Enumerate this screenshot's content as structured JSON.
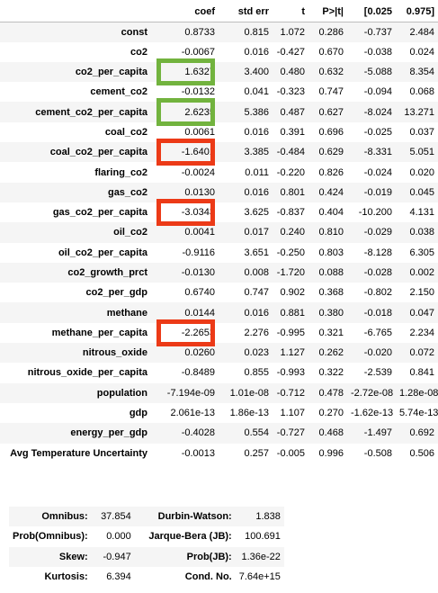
{
  "headers": [
    "",
    "coef",
    "std err",
    "t",
    "P>|t|",
    "[0.025",
    "0.975]"
  ],
  "rows": [
    {
      "name": "const",
      "values": [
        "0.8733",
        "0.815",
        "1.072",
        "0.286",
        "-0.737",
        "2.484"
      ]
    },
    {
      "name": "co2",
      "values": [
        "-0.0067",
        "0.016",
        "-0.427",
        "0.670",
        "-0.038",
        "0.024"
      ]
    },
    {
      "name": "co2_per_capita",
      "values": [
        "1.6327",
        "3.400",
        "0.480",
        "0.632",
        "-5.088",
        "8.354"
      ],
      "highlight": "green"
    },
    {
      "name": "cement_co2",
      "values": [
        "-0.0132",
        "0.041",
        "-0.323",
        "0.747",
        "-0.094",
        "0.068"
      ]
    },
    {
      "name": "cement_co2_per_capita",
      "values": [
        "2.6235",
        "5.386",
        "0.487",
        "0.627",
        "-8.024",
        "13.271"
      ],
      "highlight": "green"
    },
    {
      "name": "coal_co2",
      "values": [
        "0.0061",
        "0.016",
        "0.391",
        "0.696",
        "-0.025",
        "0.037"
      ]
    },
    {
      "name": "coal_co2_per_capita",
      "values": [
        "-1.6401",
        "3.385",
        "-0.484",
        "0.629",
        "-8.331",
        "5.051"
      ],
      "highlight": "red"
    },
    {
      "name": "flaring_co2",
      "values": [
        "-0.0024",
        "0.011",
        "-0.220",
        "0.826",
        "-0.024",
        "0.020"
      ]
    },
    {
      "name": "gas_co2",
      "values": [
        "0.0130",
        "0.016",
        "0.801",
        "0.424",
        "-0.019",
        "0.045"
      ]
    },
    {
      "name": "gas_co2_per_capita",
      "values": [
        "-3.0343",
        "3.625",
        "-0.837",
        "0.404",
        "-10.200",
        "4.131"
      ],
      "highlight": "red"
    },
    {
      "name": "oil_co2",
      "values": [
        "0.0041",
        "0.017",
        "0.240",
        "0.810",
        "-0.029",
        "0.038"
      ]
    },
    {
      "name": "oil_co2_per_capita",
      "values": [
        "-0.9116",
        "3.651",
        "-0.250",
        "0.803",
        "-8.128",
        "6.305"
      ]
    },
    {
      "name": "co2_growth_prct",
      "values": [
        "-0.0130",
        "0.008",
        "-1.720",
        "0.088",
        "-0.028",
        "0.002"
      ]
    },
    {
      "name": "co2_per_gdp",
      "values": [
        "0.6740",
        "0.747",
        "0.902",
        "0.368",
        "-0.802",
        "2.150"
      ]
    },
    {
      "name": "methane",
      "values": [
        "0.0144",
        "0.016",
        "0.881",
        "0.380",
        "-0.018",
        "0.047"
      ]
    },
    {
      "name": "methane_per_capita",
      "values": [
        "-2.2653",
        "2.276",
        "-0.995",
        "0.321",
        "-6.765",
        "2.234"
      ],
      "highlight": "red"
    },
    {
      "name": "nitrous_oxide",
      "values": [
        "0.0260",
        "0.023",
        "1.127",
        "0.262",
        "-0.020",
        "0.072"
      ]
    },
    {
      "name": "nitrous_oxide_per_capita",
      "values": [
        "-0.8489",
        "0.855",
        "-0.993",
        "0.322",
        "-2.539",
        "0.841"
      ]
    },
    {
      "name": "population",
      "values": [
        "-7.194e-09",
        "1.01e-08",
        "-0.712",
        "0.478",
        "-2.72e-08",
        "1.28e-08"
      ]
    },
    {
      "name": "gdp",
      "values": [
        "2.061e-13",
        "1.86e-13",
        "1.107",
        "0.270",
        "-1.62e-13",
        "5.74e-13"
      ]
    },
    {
      "name": "energy_per_gdp",
      "values": [
        "-0.4028",
        "0.554",
        "-0.727",
        "0.468",
        "-1.497",
        "0.692"
      ]
    },
    {
      "name": "Avg Temperature Uncertainty",
      "values": [
        "-0.0013",
        "0.257",
        "-0.005",
        "0.996",
        "-0.508",
        "0.506"
      ]
    }
  ],
  "diagnostics": [
    {
      "l1": "Omnibus:",
      "v1": "37.854",
      "l2": "Durbin-Watson:",
      "v2": "1.838"
    },
    {
      "l1": "Prob(Omnibus):",
      "v1": "0.000",
      "l2": "Jarque-Bera (JB):",
      "v2": "100.691"
    },
    {
      "l1": "Skew:",
      "v1": "-0.947",
      "l2": "Prob(JB):",
      "v2": "1.36e-22"
    },
    {
      "l1": "Kurtosis:",
      "v1": "6.394",
      "l2": "Cond. No.",
      "v2": "7.64e+15"
    }
  ],
  "colors": {
    "highlight_green": "#72b33e",
    "highlight_red": "#ec3a17",
    "row_stripe": "#f5f5f5"
  }
}
